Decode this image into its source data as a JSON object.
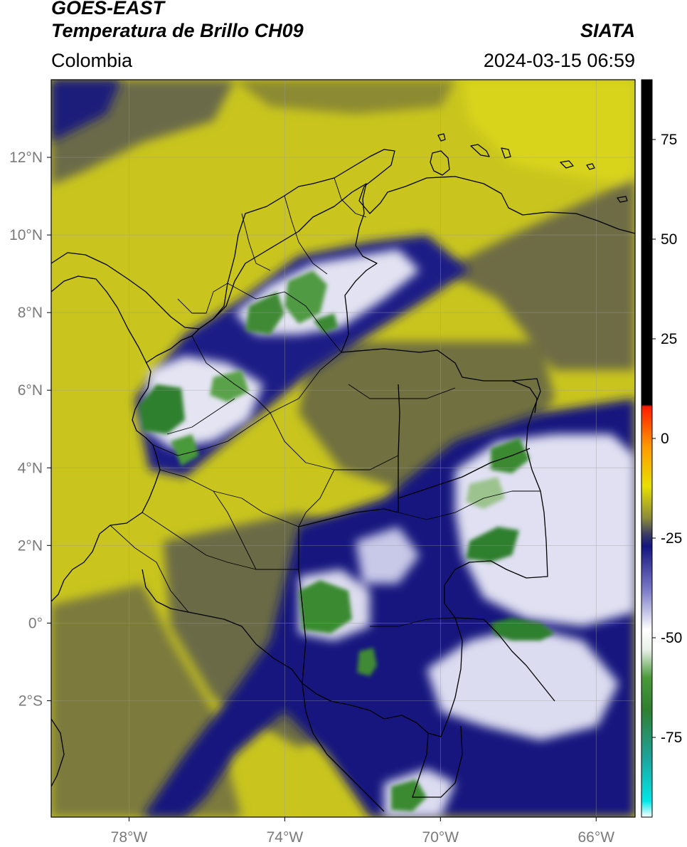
{
  "header": {
    "satellite": "GOES-EAST",
    "product": "Temperatura de Brillo CH09",
    "org": "SIATA",
    "region": "Colombia",
    "datetime": "2024-03-15 06:59"
  },
  "map": {
    "lon_range": [
      -80,
      -65
    ],
    "lat_range": [
      -5,
      14
    ],
    "lon_ticks": [
      -78,
      -74,
      -70,
      -66
    ],
    "lat_ticks": [
      12,
      10,
      8,
      6,
      4,
      2,
      0,
      -2
    ],
    "lon_labels": [
      "78°W",
      "74°W",
      "70°W",
      "66°W"
    ],
    "lat_labels": [
      "12°N",
      "10°N",
      "8°N",
      "6°N",
      "4°N",
      "2°N",
      "0°",
      "2°S"
    ],
    "background_color": "#c9c51e"
  },
  "colorbar": {
    "range": [
      -95,
      90
    ],
    "ticks": [
      75,
      50,
      25,
      0,
      -25,
      -50,
      -75
    ],
    "tick_labels": [
      "75",
      "50",
      "25",
      "0",
      "-25",
      "-50",
      "-75"
    ],
    "stops": [
      {
        "v": -95,
        "c": "#ffffff"
      },
      {
        "v": -91,
        "c": "#00e8e8"
      },
      {
        "v": -80,
        "c": "#1ea39a"
      },
      {
        "v": -68,
        "c": "#2f7f2f"
      },
      {
        "v": -60,
        "c": "#4a9a3a"
      },
      {
        "v": -53,
        "c": "#e8f0e8"
      },
      {
        "v": -48,
        "c": "#ffffff"
      },
      {
        "v": -38,
        "c": "#7a7ac8"
      },
      {
        "v": -27,
        "c": "#141480"
      },
      {
        "v": -24,
        "c": "#3c3c64"
      },
      {
        "v": -20,
        "c": "#8a8a3a"
      },
      {
        "v": -12,
        "c": "#e8e000"
      },
      {
        "v": -2,
        "c": "#ff9900"
      },
      {
        "v": 8,
        "c": "#ff1a00"
      },
      {
        "v": 8.5,
        "c": "#000000"
      },
      {
        "v": 90,
        "c": "#000000"
      }
    ]
  }
}
